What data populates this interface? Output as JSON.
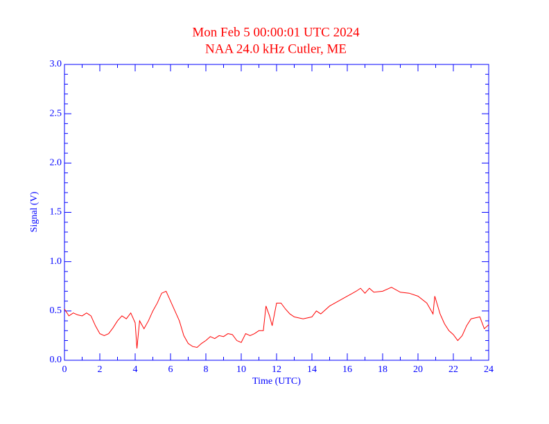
{
  "chart_data": {
    "type": "line",
    "title": "Mon Feb 5 00:00:01 UTC 2024",
    "subtitle": "NAA 24.0 kHz Cutler, ME",
    "x_label": "Time (UTC)",
    "y_label": "Signal (V)",
    "xlim": [
      0,
      24
    ],
    "ylim": [
      0,
      3
    ],
    "xticks": [
      0,
      2,
      4,
      6,
      8,
      10,
      12,
      14,
      16,
      18,
      20,
      22,
      24
    ],
    "yticks": [
      {
        "value": 0,
        "label": "0.0"
      },
      0.5,
      {
        "value": 1,
        "label": "1.0"
      },
      1.5,
      {
        "value": 2,
        "label": "2.0"
      },
      2.5,
      {
        "value": 3,
        "label": "3.0"
      }
    ],
    "xminorticks": [
      1,
      3,
      5,
      7,
      9,
      11,
      13,
      15,
      17,
      19,
      21,
      23
    ],
    "yminorticks": [
      0.1,
      0.2,
      0.3,
      0.4,
      0.6,
      0.7,
      0.8,
      0.9,
      1.1,
      1.2,
      1.3,
      1.4,
      1.6,
      1.7,
      1.8,
      1.9,
      2.1,
      2.2,
      2.3,
      2.4,
      2.6,
      2.7,
      2.8,
      2.9
    ],
    "title_color": "#ff0000",
    "axis_color": "#0000ff",
    "series": [
      {
        "color": "#ff0000",
        "x": [
          0,
          0.25,
          0.5,
          0.75,
          1,
          1.25,
          1.5,
          1.75,
          2,
          2.25,
          2.5,
          2.75,
          3,
          3.25,
          3.5,
          3.75,
          4,
          4.1,
          4.25,
          4.5,
          4.75,
          5,
          5.25,
          5.5,
          5.75,
          6,
          6.25,
          6.5,
          6.75,
          7,
          7.25,
          7.5,
          7.75,
          8,
          8.25,
          8.5,
          8.75,
          9,
          9.25,
          9.5,
          9.75,
          10,
          10.25,
          10.5,
          10.75,
          11,
          11.25,
          11.4,
          11.6,
          11.75,
          12,
          12.25,
          12.5,
          12.75,
          13,
          13.5,
          14,
          14.25,
          14.5,
          15,
          15.5,
          16,
          16.5,
          16.75,
          17,
          17.25,
          17.5,
          18,
          18.5,
          19,
          19.5,
          20,
          20.5,
          20.85,
          20.95,
          21.25,
          21.5,
          21.75,
          22,
          22.25,
          22.5,
          22.75,
          23,
          23.25,
          23.5,
          23.75,
          24
        ],
        "values": [
          0.52,
          0.45,
          0.48,
          0.46,
          0.45,
          0.48,
          0.45,
          0.35,
          0.27,
          0.25,
          0.27,
          0.33,
          0.4,
          0.45,
          0.42,
          0.48,
          0.38,
          0.12,
          0.4,
          0.32,
          0.4,
          0.5,
          0.58,
          0.68,
          0.7,
          0.6,
          0.5,
          0.4,
          0.25,
          0.17,
          0.14,
          0.13,
          0.17,
          0.2,
          0.24,
          0.22,
          0.25,
          0.24,
          0.27,
          0.26,
          0.2,
          0.18,
          0.27,
          0.25,
          0.27,
          0.3,
          0.3,
          0.55,
          0.45,
          0.35,
          0.58,
          0.58,
          0.52,
          0.47,
          0.44,
          0.42,
          0.44,
          0.5,
          0.47,
          0.55,
          0.6,
          0.65,
          0.7,
          0.73,
          0.68,
          0.73,
          0.69,
          0.7,
          0.74,
          0.69,
          0.68,
          0.65,
          0.58,
          0.47,
          0.65,
          0.47,
          0.37,
          0.3,
          0.26,
          0.2,
          0.25,
          0.35,
          0.42,
          0.43,
          0.44,
          0.32,
          0.36
        ]
      }
    ]
  }
}
